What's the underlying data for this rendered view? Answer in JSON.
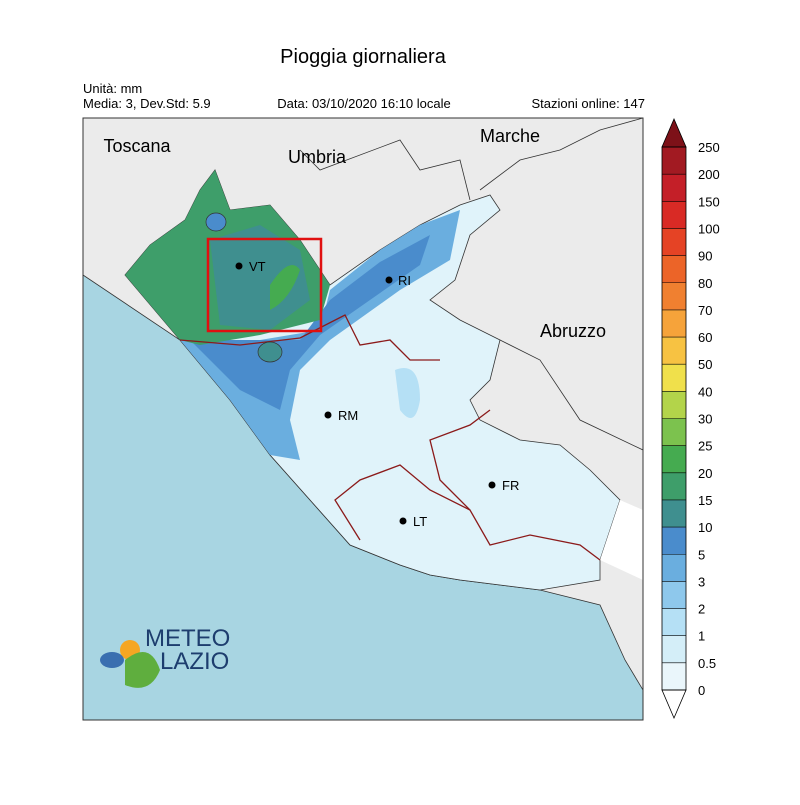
{
  "header": {
    "title": "Pioggia giornaliera",
    "units": "Unità: mm",
    "stats": "Media: 3, Dev.Std: 5.9",
    "date": "Data: 03/10/2020 16:10 locale",
    "stations": "Stazioni online: 147"
  },
  "regions": [
    "Toscana",
    "Umbria",
    "Marche",
    "Abruzzo"
  ],
  "cities": [
    "VT",
    "RI",
    "RM",
    "FR",
    "LT"
  ],
  "colorbar": {
    "levels": [
      0,
      0.5,
      1,
      2,
      3,
      5,
      10,
      15,
      20,
      25,
      30,
      40,
      50,
      60,
      70,
      80,
      90,
      100,
      150,
      200,
      250
    ],
    "colors": [
      "#eaf6fb",
      "#d4eef8",
      "#b5e0f5",
      "#8ec8ec",
      "#6aaedf",
      "#4a8ccc",
      "#3f8f8f",
      "#3e9e6a",
      "#45ab50",
      "#7cc24e",
      "#b3d44a",
      "#f0e04b",
      "#f7c242",
      "#f6a33a",
      "#f08030",
      "#ec6428",
      "#e54325",
      "#d92a25",
      "#c41f28",
      "#a21a22"
    ],
    "under_color": "#ffffff",
    "over_color": "#7d1118"
  },
  "logo": {
    "line1": "METEO",
    "line2": "LAZIO"
  }
}
